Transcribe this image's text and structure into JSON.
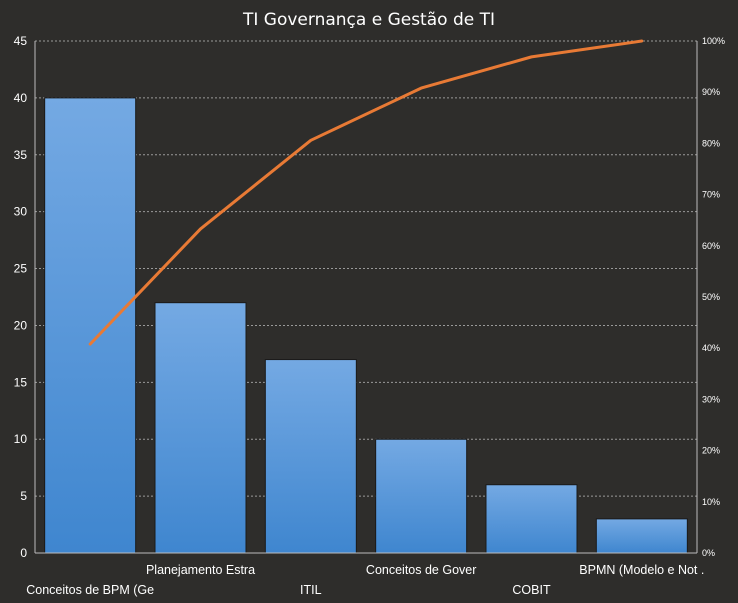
{
  "chart_data": {
    "type": "bar",
    "title": "TI Governança e Gestão de TI",
    "categories": [
      "Conceitos de BPM (Ge",
      "Planejamento Estra",
      "ITIL",
      "Conceitos de Gover",
      "COBIT",
      "BPMN (Modelo e Not ."
    ],
    "series": [
      {
        "type": "bar",
        "values": [
          40,
          22,
          17,
          10,
          6,
          3
        ]
      },
      {
        "type": "line",
        "axis": "secondary",
        "values": [
          0.408,
          0.633,
          0.806,
          0.908,
          0.969,
          1.0
        ]
      }
    ],
    "ylim": [
      0,
      45
    ],
    "yticks": [
      "0",
      "5",
      "10",
      "15",
      "20",
      "25",
      "30",
      "35",
      "40",
      "45"
    ],
    "y2lim": [
      0,
      1
    ],
    "y2ticks": [
      "0%",
      "10%",
      "20%",
      "30%",
      "40%",
      "50%",
      "60%",
      "70%",
      "80%",
      "90%",
      "100%"
    ],
    "grid": true,
    "colors": {
      "background": "#2e2d2b",
      "bar_top": "#74a9e3",
      "bar_bottom": "#3f86cf",
      "line": "#e87a35",
      "text": "#ffffff"
    }
  }
}
